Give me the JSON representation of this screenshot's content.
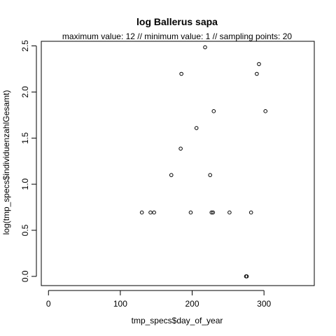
{
  "chart_data": {
    "type": "scatter",
    "title": "log Ballerus sapa",
    "subtitle": "maximum value: 12  //  minimum value: 1  // sampling points: 20",
    "xlabel": "tmp_specs$day_of_year",
    "ylabel": "log(tmp_specs$individuenzahlGesamt)",
    "xlim": [
      -10,
      370
    ],
    "ylim": [
      -0.1,
      2.55
    ],
    "x_ticks": [
      0,
      100,
      200,
      300
    ],
    "y_ticks": [
      0.0,
      0.5,
      1.0,
      1.5,
      2.0,
      2.5
    ],
    "x_tick_labels": [
      "0",
      "100",
      "200",
      "300"
    ],
    "y_tick_labels": [
      "0.0",
      "0.5",
      "1.0",
      "1.5",
      "2.0",
      "2.5"
    ],
    "grid": false,
    "points": [
      {
        "x": 130,
        "y": 0.693
      },
      {
        "x": 142,
        "y": 0.693
      },
      {
        "x": 147,
        "y": 0.693
      },
      {
        "x": 171,
        "y": 1.099
      },
      {
        "x": 184,
        "y": 1.386
      },
      {
        "x": 185,
        "y": 2.197
      },
      {
        "x": 198,
        "y": 0.693
      },
      {
        "x": 206,
        "y": 1.609
      },
      {
        "x": 218,
        "y": 2.485
      },
      {
        "x": 225,
        "y": 1.099
      },
      {
        "x": 227,
        "y": 0.693
      },
      {
        "x": 229,
        "y": 0.693
      },
      {
        "x": 230,
        "y": 1.792
      },
      {
        "x": 252,
        "y": 0.693
      },
      {
        "x": 275,
        "y": 0.0
      },
      {
        "x": 276,
        "y": 0.0
      },
      {
        "x": 282,
        "y": 0.693
      },
      {
        "x": 290,
        "y": 2.197
      },
      {
        "x": 293,
        "y": 2.303
      },
      {
        "x": 302,
        "y": 1.792
      }
    ]
  }
}
